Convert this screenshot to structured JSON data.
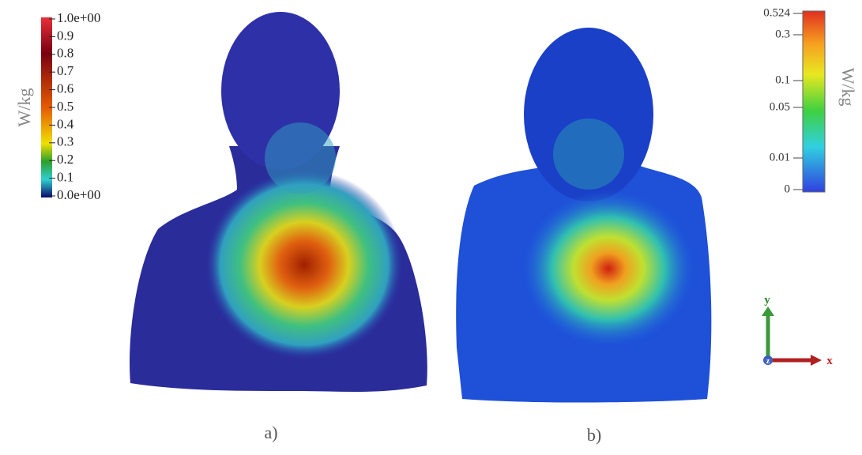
{
  "panel_a": {
    "caption": "a)",
    "colorbar": {
      "label": "W/kg",
      "ticks": [
        "1.0e+00",
        "0.9",
        "0.8",
        "0.7",
        "0.6",
        "0.5",
        "0.4",
        "0.3",
        "0.2",
        "0.1",
        "0.0e+00"
      ]
    }
  },
  "panel_b": {
    "caption": "b)",
    "colorbar": {
      "label": "W/kg",
      "ticks": [
        "0.524",
        "0.3",
        "0.1",
        "0.05",
        "0.01",
        "0"
      ]
    },
    "axes": {
      "x": "x",
      "y": "y",
      "z": "z"
    }
  }
}
